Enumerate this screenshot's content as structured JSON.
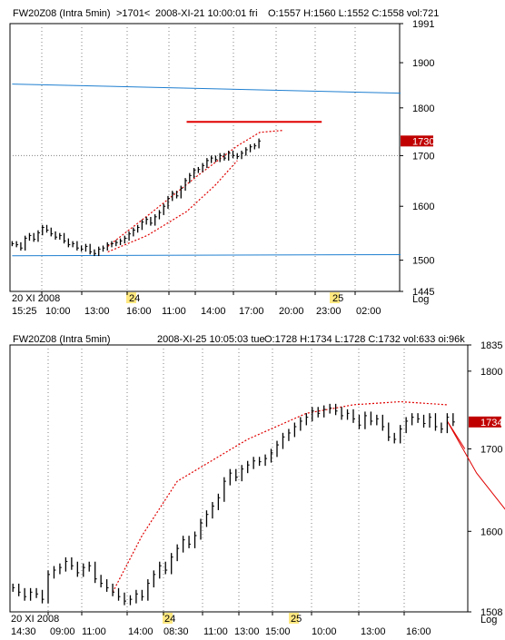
{
  "colors": {
    "price": "#000000",
    "channel": "#1f7fd0",
    "trend": "#e00000",
    "last_price_badge": "#c00000",
    "grid": "#808080",
    "date_marker": "#ffe880"
  },
  "chart_data": [
    {
      "type": "line",
      "header": {
        "symbol": "FW20Z08 (Intra 5min)",
        "marker": ">1701<",
        "datetime": "2008-XI-21  10:00:01 fri",
        "ohlc": "O:1557 H:1560 L:1552 C:1558 vol:721"
      },
      "y_scale": "Log",
      "y_ticks": [
        "1991",
        "1900",
        "1800",
        "1700",
        "1600",
        "1500",
        "1445"
      ],
      "ylim": [
        1445,
        1991
      ],
      "last_price": "1730",
      "hline": 1700,
      "x_time_labels": [
        "15:25",
        "10:00",
        "13:00",
        "16:00",
        "11:00",
        "14:00",
        "17:00",
        "20:00",
        "23:00",
        "02:00"
      ],
      "x_date_labels": [
        "20 XI 2008",
        "24",
        "25"
      ],
      "series": [
        {
          "values": [
            1530,
            1528,
            1522,
            1540,
            1545,
            1538,
            1550,
            1560,
            1555,
            1548,
            1542,
            1545,
            1535,
            1528,
            1530,
            1522,
            1520,
            1525,
            1515,
            1512,
            1520,
            1522,
            1528,
            1530,
            1532,
            1535,
            1540,
            1548,
            1555,
            1560,
            1570,
            1575,
            1568,
            1580,
            1588,
            1600,
            1615,
            1625,
            1620,
            1635,
            1650,
            1660,
            1670,
            1672,
            1680,
            1690,
            1695,
            1692,
            1700,
            1695,
            1705,
            1700,
            1698,
            1705,
            1712,
            1718,
            1720,
            1730
          ]
        }
      ],
      "overlays": {
        "channel_upper": [
          [
            0,
            1852
          ],
          [
            69,
            1832
          ]
        ],
        "channel_lower": [
          [
            0,
            1508
          ],
          [
            69,
            1510
          ]
        ],
        "resistance": [
          [
            31,
            1770
          ],
          [
            55,
            1770
          ]
        ],
        "ellipse_upper": [
          [
            17,
            1525
          ],
          [
            25,
            1590
          ],
          [
            33,
            1660
          ],
          [
            40,
            1720
          ],
          [
            44,
            1748
          ],
          [
            48,
            1752
          ]
        ],
        "ellipse_lower": [
          [
            17,
            1515
          ],
          [
            24,
            1545
          ],
          [
            31,
            1590
          ],
          [
            36,
            1640
          ],
          [
            40,
            1690
          ]
        ]
      }
    },
    {
      "type": "line",
      "header": {
        "symbol": "FW20Z08 (Intra 5min)",
        "datetime": "2008-XI-25  10:05:03 tue",
        "ohlc": "O:1728 H:1734 L:1728 C:1732 vol:633 oi:96k"
      },
      "y_scale": "Log",
      "y_ticks": [
        "1835",
        "1800",
        "1700",
        "1600",
        "1508"
      ],
      "ylim": [
        1508,
        1835
      ],
      "last_price": "1734",
      "x_time_labels": [
        "14:30",
        "09:00",
        "11:00",
        "14:00",
        "08:30",
        "11:00",
        "13:00",
        "15:00",
        "10:00",
        "13:00",
        "16:00"
      ],
      "x_date_labels": [
        "20 XI 2008",
        "24",
        "25"
      ],
      "series": [
        {
          "values": [
            1535,
            1530,
            1525,
            1530,
            1528,
            1522,
            1550,
            1555,
            1558,
            1565,
            1560,
            1552,
            1558,
            1560,
            1545,
            1540,
            1535,
            1530,
            1525,
            1520,
            1522,
            1528,
            1525,
            1540,
            1550,
            1560,
            1555,
            1570,
            1580,
            1590,
            1585,
            1595,
            1610,
            1620,
            1630,
            1640,
            1660,
            1670,
            1665,
            1675,
            1680,
            1685,
            1684,
            1688,
            1695,
            1705,
            1715,
            1720,
            1728,
            1735,
            1740,
            1748,
            1745,
            1750,
            1752,
            1748,
            1742,
            1745,
            1738,
            1730,
            1742,
            1735,
            1738,
            1728,
            1715,
            1712,
            1725,
            1735,
            1740,
            1738,
            1732,
            1740,
            1728,
            1725,
            1740,
            1734
          ]
        }
      ],
      "overlays": {
        "arc": [
          [
            17,
            1530
          ],
          [
            22,
            1595
          ],
          [
            28,
            1660
          ],
          [
            40,
            1712
          ],
          [
            50,
            1745
          ],
          [
            58,
            1756
          ],
          [
            66,
            1760
          ],
          [
            74,
            1756
          ]
        ],
        "projection": [
          [
            74,
            1735
          ],
          [
            79,
            1670
          ],
          [
            84,
            1625
          ]
        ],
        "projection2": [
          [
            74,
            1735
          ],
          [
            77,
            1700
          ]
        ]
      }
    }
  ]
}
